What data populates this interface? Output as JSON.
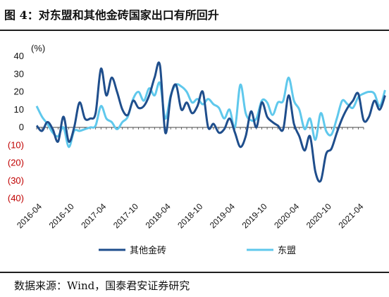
{
  "title": "图 4：对东盟和其他金砖国家出口有所回升",
  "source": "数据来源：Wind，国泰君安证券研究",
  "chart_data": {
    "type": "line",
    "ylabel": "(%)",
    "ylim": [
      -40,
      40
    ],
    "y_ticks": [
      "40",
      "30",
      "20",
      "10",
      "0",
      "(10)",
      "(20)",
      "(30)",
      "(40)"
    ],
    "x_tick_labels": [
      "2016-04",
      "2016-10",
      "2017-04",
      "2017-10",
      "2018-04",
      "2018-10",
      "2019-04",
      "2019-10",
      "2020-04",
      "2020-10",
      "2021-04"
    ],
    "x_start": "2016-04",
    "x_end": "2021-05",
    "legend_position": "bottom",
    "grid": false,
    "series": [
      {
        "name": "其他金砖",
        "color": "#1f4e8c",
        "values": [
          1,
          -2,
          3,
          -1,
          -8,
          6,
          -8,
          0,
          14,
          5,
          5,
          8,
          33,
          18,
          28,
          20,
          10,
          7,
          15,
          11,
          12,
          18,
          28,
          35,
          -3,
          17,
          24,
          10,
          14,
          8,
          12,
          20,
          0,
          2,
          -3,
          -1,
          5,
          -3,
          -11,
          -5,
          9,
          0,
          14,
          6,
          3,
          1,
          -1,
          18,
          2,
          -5,
          -13,
          -5,
          -25,
          -30,
          -15,
          -12,
          -3,
          5,
          11,
          15,
          19,
          4,
          6,
          15,
          10,
          18
        ]
      },
      {
        "name": "东盟",
        "color": "#5fc8ec",
        "values": [
          12,
          6,
          2,
          -3,
          -5,
          0,
          -11,
          -2,
          -2,
          -1,
          0,
          1,
          12,
          5,
          3,
          -1,
          3,
          6,
          16,
          20,
          15,
          22,
          18,
          25,
          5,
          18,
          24,
          23,
          20,
          14,
          16,
          13,
          16,
          13,
          11,
          5,
          10,
          0,
          24,
          8,
          4,
          5,
          15,
          14,
          7,
          14,
          15,
          28,
          15,
          10,
          -1,
          5,
          -7,
          8,
          -2,
          -4,
          5,
          15,
          13,
          11,
          17,
          19,
          20,
          19,
          12,
          21
        ]
      }
    ]
  }
}
